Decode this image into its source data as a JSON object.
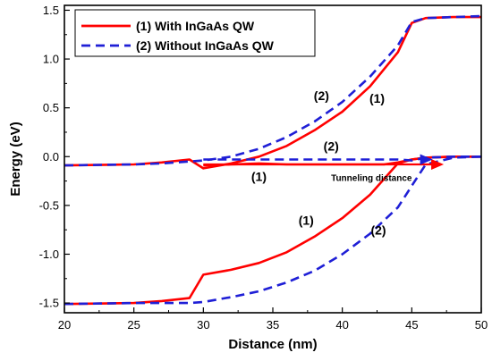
{
  "chart_data": {
    "type": "line",
    "xlabel": "Distance (nm)",
    "ylabel": "Energy (eV)",
    "xlim": [
      20,
      50
    ],
    "ylim": [
      -1.6,
      1.55
    ],
    "x_ticks": [
      20,
      25,
      30,
      35,
      40,
      45,
      50
    ],
    "y_ticks": [
      -1.5,
      -1.0,
      -0.5,
      0.0,
      0.5,
      1.0,
      1.5
    ],
    "x_tick_labels": [
      "20",
      "25",
      "30",
      "35",
      "40",
      "45",
      "50"
    ],
    "y_tick_labels": [
      "-1.5",
      "-1.0",
      "-0.5",
      "0.0",
      "0.5",
      "1.0",
      "1.5"
    ],
    "grid": false,
    "legend_position": "top-left",
    "series": [
      {
        "name": "(1) With InGaAs QW",
        "color": "#ff0000",
        "style": "solid",
        "curves": [
          {
            "x": [
              20,
              25,
              27,
              29,
              30,
              32,
              34,
              36,
              38,
              40,
              42,
              44,
              45,
              46,
              48,
              50
            ],
            "y": [
              -0.09,
              -0.08,
              -0.06,
              -0.03,
              -0.12,
              -0.07,
              0.0,
              0.11,
              0.27,
              0.46,
              0.72,
              1.07,
              1.37,
              1.42,
              1.43,
              1.43
            ]
          },
          {
            "x": [
              30,
              32,
              34,
              36,
              38,
              40,
              41,
              42,
              43,
              44,
              45,
              46,
              48,
              50
            ],
            "y": [
              -0.09,
              -0.08,
              -0.07,
              -0.08,
              -0.08,
              -0.08,
              -0.08,
              -0.08,
              -0.08,
              -0.06,
              -0.03,
              -0.01,
              0.0,
              0.0
            ]
          },
          {
            "x": [
              20,
              25,
              27,
              29,
              30,
              32,
              34,
              36,
              38,
              40,
              42,
              44,
              45,
              46,
              48,
              50
            ],
            "y": [
              -1.51,
              -1.5,
              -1.48,
              -1.45,
              -1.21,
              -1.16,
              -1.09,
              -0.98,
              -0.82,
              -0.63,
              -0.39,
              -0.07,
              -0.03,
              -0.01,
              0.0,
              0.0
            ]
          }
        ]
      },
      {
        "name": "(2) Without InGaAs QW",
        "color": "#1f1fd6",
        "style": "dashed",
        "curves": [
          {
            "x": [
              20,
              25,
              27,
              29,
              30,
              32,
              34,
              36,
              38,
              40,
              42,
              44,
              45,
              46,
              48,
              50
            ],
            "y": [
              -0.09,
              -0.08,
              -0.07,
              -0.05,
              -0.04,
              0.0,
              0.08,
              0.2,
              0.36,
              0.56,
              0.82,
              1.14,
              1.38,
              1.42,
              1.43,
              1.44
            ]
          },
          {
            "x": [
              30,
              32,
              34,
              36,
              38,
              40,
              42,
              44,
              45,
              46,
              48,
              50
            ],
            "y": [
              -0.03,
              -0.03,
              -0.03,
              -0.03,
              -0.03,
              -0.03,
              -0.03,
              -0.03,
              -0.04,
              -0.01,
              0.0,
              0.0
            ]
          },
          {
            "x": [
              20,
              25,
              27,
              29,
              30,
              32,
              34,
              36,
              38,
              40,
              42,
              44,
              45,
              46,
              48,
              50
            ],
            "y": [
              -1.51,
              -1.5,
              -1.5,
              -1.5,
              -1.49,
              -1.44,
              -1.38,
              -1.29,
              -1.17,
              -1.0,
              -0.79,
              -0.52,
              -0.3,
              -0.08,
              -0.01,
              0.0
            ]
          }
        ]
      }
    ],
    "annotations": [
      {
        "text": "(2)",
        "x": 38.5,
        "y": 0.58,
        "size": "large"
      },
      {
        "text": "(1)",
        "x": 42.5,
        "y": 0.55,
        "size": "large"
      },
      {
        "text": "(2)",
        "x": 39.2,
        "y": 0.06,
        "size": "large"
      },
      {
        "text": "(1)",
        "x": 34.0,
        "y": -0.25,
        "size": "large"
      },
      {
        "text": "Tunneling distance",
        "x": 42.1,
        "y": -0.25,
        "size": "small"
      },
      {
        "text": "(1)",
        "x": 37.4,
        "y": -0.7,
        "size": "large"
      },
      {
        "text": "(2)",
        "x": 42.6,
        "y": -0.8,
        "size": "large"
      }
    ],
    "arrow": {
      "x_start": 30.0,
      "x_end": 47.3,
      "y": -0.08
    }
  }
}
